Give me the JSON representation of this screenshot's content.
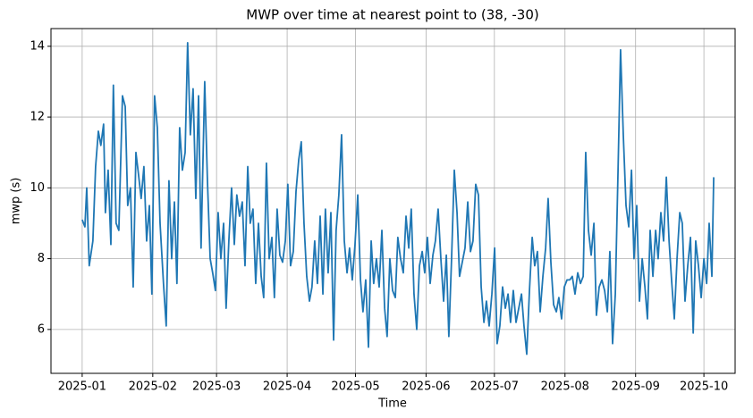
{
  "chart_data": {
    "type": "line",
    "title": "MWP over time at nearest point to (38, -30)",
    "x_label": "Time",
    "y_label": "mwp (s)",
    "color": "#1f77b4",
    "grid": true,
    "xlim": [
      -13.7,
      286.7
    ],
    "ylim": [
      4.76,
      14.5
    ],
    "xticks": [
      {
        "value": 0,
        "label": "2025-01"
      },
      {
        "value": 31,
        "label": "2025-02"
      },
      {
        "value": 59,
        "label": "2025-03"
      },
      {
        "value": 90,
        "label": "2025-04"
      },
      {
        "value": 120,
        "label": "2025-05"
      },
      {
        "value": 151,
        "label": "2025-06"
      },
      {
        "value": 181,
        "label": "2025-07"
      },
      {
        "value": 212,
        "label": "2025-08"
      },
      {
        "value": 243,
        "label": "2025-09"
      },
      {
        "value": 273,
        "label": "2025-10"
      }
    ],
    "yticks": [
      6,
      8,
      10,
      12,
      14
    ],
    "x": [
      0,
      1.2,
      2.0,
      3.1,
      4.7,
      5.9,
      7.1,
      8.2,
      9.4,
      10.2,
      11.4,
      12.6,
      13.7,
      14.9,
      16.1,
      17.7,
      18.9,
      20.0,
      21.2,
      22.4,
      23.6,
      24.7,
      25.9,
      27.1,
      28.3,
      29.5,
      30.6,
      31.8,
      33.0,
      34.2,
      35.7,
      36.9,
      38.1,
      39.3,
      40.5,
      41.6,
      42.8,
      44.0,
      45.2,
      46.3,
      47.5,
      48.7,
      49.9,
      51.1,
      52.2,
      53.8,
      55.0,
      56.2,
      57.3,
      58.5,
      59.7,
      60.9,
      62.1,
      63.2,
      64.4,
      65.6,
      66.8,
      67.9,
      69.1,
      70.3,
      71.5,
      72.7,
      73.8,
      75.0,
      76.2,
      77.4,
      78.6,
      79.7,
      80.9,
      82.1,
      83.3,
      84.4,
      85.6,
      86.8,
      88.0,
      89.2,
      90.3,
      91.5,
      92.7,
      93.9,
      95.1,
      96.2,
      97.4,
      98.6,
      99.8,
      100.9,
      102.1,
      103.3,
      104.5,
      105.7,
      106.8,
      108.0,
      109.2,
      110.4,
      111.5,
      112.7,
      113.9,
      115.1,
      116.3,
      117.4,
      118.6,
      119.8,
      121.0,
      122.2,
      123.3,
      124.5,
      125.7,
      126.9,
      128.0,
      129.2,
      130.4,
      131.6,
      132.8,
      133.9,
      135.1,
      136.3,
      137.5,
      138.6,
      139.8,
      141.0,
      142.2,
      143.4,
      144.5,
      145.7,
      146.9,
      148.1,
      149.3,
      150.4,
      151.6,
      152.8,
      154.0,
      155.1,
      156.3,
      157.5,
      158.7,
      159.9,
      161.0,
      162.2,
      163.4,
      164.6,
      165.7,
      166.9,
      168.1,
      169.3,
      170.5,
      171.6,
      172.8,
      174.0,
      175.2,
      176.4,
      177.5,
      178.7,
      179.9,
      181.1,
      182.2,
      183.4,
      184.6,
      185.8,
      187.0,
      188.1,
      189.3,
      190.5,
      191.7,
      192.9,
      194.0,
      195.2,
      196.4,
      197.6,
      198.7,
      199.9,
      201.1,
      202.3,
      203.5,
      204.6,
      205.8,
      207.0,
      208.2,
      209.3,
      210.5,
      211.7,
      212.9,
      214.1,
      215.2,
      216.4,
      217.6,
      218.8,
      220.0,
      221.1,
      222.3,
      223.5,
      224.7,
      225.8,
      227.0,
      228.2,
      229.4,
      230.6,
      231.7,
      232.9,
      234.1,
      235.3,
      236.4,
      237.6,
      238.8,
      240.0,
      241.2,
      242.3,
      243.5,
      244.7,
      245.9,
      247.1,
      248.2,
      249.4,
      250.6,
      251.8,
      252.9,
      254.1,
      255.3,
      256.5,
      257.7,
      258.8,
      260.0,
      261.2,
      262.4,
      263.5,
      264.7,
      265.9,
      267.1,
      268.3,
      269.4,
      270.6,
      271.8,
      273.0,
      274.2,
      275.3,
      276.5,
      277.3
    ],
    "values": [
      9.1,
      8.9,
      10.0,
      7.8,
      8.5,
      10.6,
      11.6,
      11.2,
      11.8,
      9.3,
      10.5,
      8.4,
      12.9,
      9.0,
      8.8,
      12.6,
      12.3,
      9.5,
      10.0,
      7.2,
      11.0,
      10.4,
      9.7,
      10.6,
      8.5,
      9.5,
      7.0,
      12.6,
      11.7,
      9.0,
      7.3,
      6.1,
      10.2,
      8.0,
      9.6,
      7.3,
      11.7,
      10.5,
      11.0,
      14.1,
      11.5,
      12.8,
      9.7,
      12.6,
      8.3,
      13.0,
      10.2,
      8.0,
      7.6,
      7.1,
      9.3,
      8.0,
      9.0,
      6.6,
      8.5,
      10.0,
      8.4,
      9.8,
      9.2,
      9.6,
      7.8,
      10.6,
      9.0,
      9.4,
      7.3,
      9.0,
      7.5,
      6.9,
      10.7,
      8.0,
      8.6,
      6.9,
      9.4,
      8.1,
      7.9,
      8.5,
      10.1,
      7.8,
      8.2,
      9.9,
      10.8,
      11.3,
      9.0,
      7.5,
      6.8,
      7.2,
      8.5,
      7.3,
      9.2,
      7.0,
      9.4,
      7.6,
      9.3,
      5.7,
      8.8,
      9.8,
      11.5,
      8.5,
      7.6,
      8.3,
      7.4,
      8.4,
      9.8,
      7.4,
      6.5,
      7.4,
      5.5,
      8.5,
      7.3,
      8.0,
      7.2,
      8.8,
      6.6,
      5.8,
      8.0,
      7.1,
      6.9,
      8.6,
      8.0,
      7.6,
      9.2,
      8.3,
      9.4,
      7.0,
      6.0,
      7.8,
      8.2,
      7.6,
      8.6,
      7.3,
      8.1,
      8.5,
      9.4,
      8.0,
      6.8,
      8.1,
      5.8,
      8.0,
      10.5,
      9.3,
      7.5,
      7.9,
      8.3,
      9.6,
      8.2,
      8.5,
      10.1,
      9.8,
      7.2,
      6.2,
      6.8,
      6.1,
      7.0,
      8.3,
      5.6,
      6.1,
      7.2,
      6.6,
      7.0,
      6.2,
      7.1,
      6.2,
      6.6,
      7.0,
      6.1,
      5.3,
      7.1,
      8.6,
      7.8,
      8.2,
      6.5,
      7.5,
      8.3,
      9.7,
      7.9,
      6.7,
      6.5,
      6.9,
      6.3,
      7.2,
      7.4,
      7.4,
      7.5,
      7.0,
      7.6,
      7.3,
      7.5,
      11.0,
      8.8,
      8.1,
      9.0,
      6.4,
      7.2,
      7.4,
      7.1,
      6.5,
      8.2,
      5.6,
      7.0,
      10.5,
      13.9,
      11.5,
      9.5,
      8.9,
      10.5,
      8.0,
      9.5,
      6.8,
      8.0,
      7.2,
      6.3,
      8.8,
      7.5,
      8.8,
      8.0,
      9.3,
      8.5,
      10.3,
      8.5,
      7.4,
      6.3,
      8.0,
      9.3,
      9.0,
      6.8,
      7.8,
      8.6,
      5.9,
      8.5,
      7.8,
      6.9,
      8.0,
      7.3,
      9.0,
      7.5,
      10.3
    ]
  }
}
